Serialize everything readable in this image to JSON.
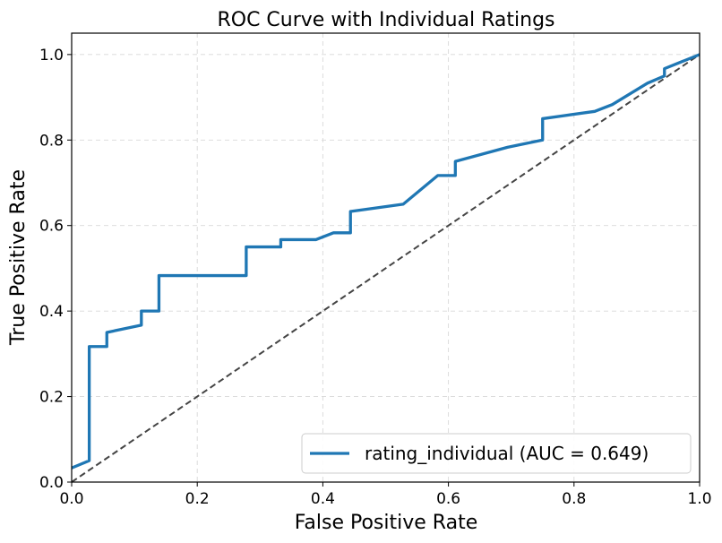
{
  "chart_data": {
    "type": "line",
    "title": "ROC Curve with Individual Ratings",
    "xlabel": "False Positive Rate",
    "ylabel": "True Positive Rate",
    "xlim": [
      0.0,
      1.0
    ],
    "ylim": [
      0.0,
      1.05
    ],
    "xticks": [
      0.0,
      0.2,
      0.4,
      0.6,
      0.8,
      1.0
    ],
    "yticks": [
      0.0,
      0.2,
      0.4,
      0.6,
      0.8,
      1.0
    ],
    "xtick_labels": [
      "0.0",
      "0.2",
      "0.4",
      "0.6",
      "0.8",
      "1.0"
    ],
    "ytick_labels": [
      "0.0",
      "0.2",
      "0.4",
      "0.6",
      "0.8",
      "1.0"
    ],
    "grid": true,
    "legend_position": "bottom-right",
    "legend_label": "rating_individual (AUC = 0.649)",
    "series": [
      {
        "name": "rating_individual (AUC = 0.649)",
        "color": "#1f77b4",
        "x": [
          0.0,
          0.028,
          0.028,
          0.056,
          0.056,
          0.111,
          0.111,
          0.139,
          0.139,
          0.278,
          0.278,
          0.333,
          0.333,
          0.389,
          0.417,
          0.444,
          0.444,
          0.528,
          0.583,
          0.611,
          0.611,
          0.694,
          0.75,
          0.75,
          0.833,
          0.861,
          0.917,
          0.944,
          0.944,
          1.0
        ],
        "y": [
          0.033,
          0.05,
          0.317,
          0.317,
          0.35,
          0.367,
          0.4,
          0.4,
          0.483,
          0.483,
          0.55,
          0.55,
          0.567,
          0.567,
          0.583,
          0.583,
          0.633,
          0.65,
          0.717,
          0.717,
          0.75,
          0.783,
          0.8,
          0.85,
          0.867,
          0.883,
          0.933,
          0.95,
          0.967,
          1.0
        ]
      }
    ],
    "reference_line": {
      "name": "chance",
      "color": "#444444",
      "x": [
        0.0,
        1.0
      ],
      "y": [
        0.0,
        1.0
      ]
    }
  }
}
